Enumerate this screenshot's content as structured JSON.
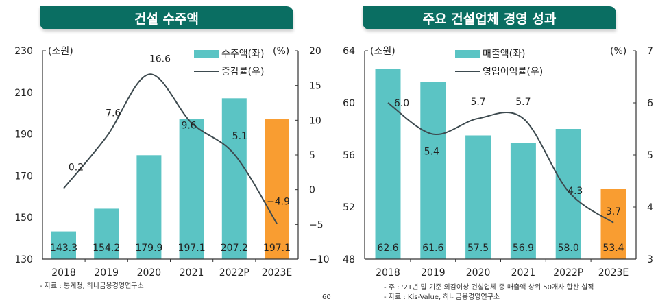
{
  "chart_data": [
    {
      "type": "bar+line",
      "title": "건설 수주액",
      "categories": [
        "2018",
        "2019",
        "2020",
        "2021",
        "2022P",
        "2023E"
      ],
      "left_unit": "(조원)",
      "right_unit": "(%)",
      "left_ylim": [
        130,
        230
      ],
      "left_ticks": [
        130,
        150,
        170,
        190,
        210,
        230
      ],
      "right_ylim": [
        -10,
        20
      ],
      "right_ticks": [
        -10,
        -5,
        0,
        5,
        10,
        15,
        20
      ],
      "legend_position": "top-right",
      "series": [
        {
          "name": "수주액(좌)",
          "kind": "bar",
          "axis": "left",
          "values": [
            143.3,
            154.2,
            179.9,
            197.1,
            207.2,
            197.1
          ],
          "labels": [
            "143.3",
            "154.2",
            "179.9",
            "197.1",
            "207.2",
            "197.1"
          ]
        },
        {
          "name": "증감률(우)",
          "kind": "line",
          "axis": "right",
          "values": [
            0.2,
            7.6,
            16.6,
            9.6,
            5.1,
            -4.9
          ],
          "labels": [
            "0.2",
            "7.6",
            "16.6",
            "9.6",
            "5.1",
            "−4.9"
          ]
        }
      ],
      "highlight_last_bar": true,
      "source": "- 자료 : 통계청, 하나금융경영연구소"
    },
    {
      "type": "bar+line",
      "title": "주요 건설업체 경영 성과",
      "categories": [
        "2018",
        "2019",
        "2020",
        "2021",
        "2022P",
        "2023E"
      ],
      "left_unit": "(조원)",
      "right_unit": "(%)",
      "left_ylim": [
        48,
        64
      ],
      "left_ticks": [
        48,
        52,
        56,
        60,
        64
      ],
      "right_ylim": [
        3,
        7
      ],
      "right_ticks": [
        3,
        4,
        5,
        6,
        7
      ],
      "legend_position": "top-center",
      "series": [
        {
          "name": "매출액(좌)",
          "kind": "bar",
          "axis": "left",
          "values": [
            62.6,
            61.6,
            57.5,
            56.9,
            58.0,
            53.4
          ],
          "labels": [
            "62.6",
            "61.6",
            "57.5",
            "56.9",
            "58.0",
            "53.4"
          ]
        },
        {
          "name": "영업이익률(우)",
          "kind": "line",
          "axis": "right",
          "values": [
            6.0,
            5.4,
            5.7,
            5.7,
            4.3,
            3.7
          ],
          "labels": [
            "6.0",
            "5.4",
            "5.7",
            "5.7",
            "4.3",
            "3.7"
          ]
        }
      ],
      "highlight_last_bar": true,
      "notes": [
        "- 주 : '21년 말 기준 외감이상 건설업체 중 매출액 상위 50개사 합산 실적",
        "- 자료 : Kis-Value, 하나금융경영연구소"
      ]
    }
  ],
  "colors": {
    "bar": "#5bc4c4",
    "bar_highlight": "#f99d31",
    "line": "#3d4a4f",
    "title_bg": "#0a6e62",
    "title_text": "#ffffff"
  },
  "page_number": "60"
}
